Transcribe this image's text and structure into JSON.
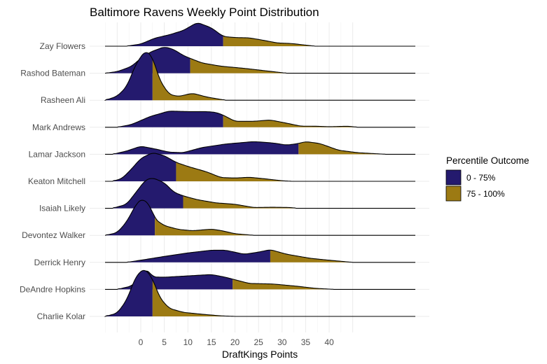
{
  "chart_data": {
    "type": "ridgeline-density",
    "title": "Baltimore Ravens Weekly Point Distribution",
    "xlabel": "DraftKings Points",
    "ylabel": "",
    "x_ticks": [
      0,
      5,
      10,
      15,
      20,
      25,
      30,
      35,
      40
    ],
    "x_tick_labels": [
      "0",
      "5",
      "10",
      "15",
      "20",
      "25",
      "30",
      "35",
      "40"
    ],
    "xlim": [
      -7.5,
      58.5
    ],
    "grid": true,
    "legend": {
      "title": "Percentile Outcome",
      "position": "right",
      "entries": [
        {
          "label": "0 - 75%",
          "color": "#241a6e"
        },
        {
          "label": "75 - 100%",
          "color": "#9c7a13"
        }
      ]
    },
    "density_unit": "fraction of row spacing",
    "series": [
      {
        "name": "Zay Flowers",
        "p75": 17.5,
        "curve": [
          [
            -3,
            0
          ],
          [
            0,
            0.08
          ],
          [
            3,
            0.3
          ],
          [
            6,
            0.42
          ],
          [
            9,
            0.58
          ],
          [
            12,
            0.88
          ],
          [
            15,
            0.68
          ],
          [
            17.5,
            0.36
          ],
          [
            20,
            0.32
          ],
          [
            23,
            0.31
          ],
          [
            26,
            0.22
          ],
          [
            29,
            0.12
          ],
          [
            32,
            0.1
          ],
          [
            35,
            0.04
          ],
          [
            37,
            0
          ]
        ]
      },
      {
        "name": "Rashod Bateman",
        "p75": 10.5,
        "curve": [
          [
            -7.5,
            0
          ],
          [
            -5,
            0.06
          ],
          [
            -2,
            0.25
          ],
          [
            0,
            0.55
          ],
          [
            2,
            0.78
          ],
          [
            5,
            0.98
          ],
          [
            7,
            0.88
          ],
          [
            9,
            0.66
          ],
          [
            10.5,
            0.55
          ],
          [
            13,
            0.38
          ],
          [
            17,
            0.26
          ],
          [
            22,
            0.18
          ],
          [
            26,
            0.1
          ],
          [
            30,
            0.02
          ],
          [
            31,
            0
          ]
        ]
      },
      {
        "name": "Rasheen Ali",
        "p75": 2.5,
        "curve": [
          [
            -7.5,
            0
          ],
          [
            -5,
            0.15
          ],
          [
            -3,
            0.5
          ],
          [
            -1,
            1.35
          ],
          [
            1,
            1.85
          ],
          [
            2.5,
            1.6
          ],
          [
            4,
            0.75
          ],
          [
            6,
            0.22
          ],
          [
            8,
            0.14
          ],
          [
            11,
            0.26
          ],
          [
            14,
            0.12
          ],
          [
            17,
            0.03
          ],
          [
            18,
            0
          ]
        ]
      },
      {
        "name": "Mark Andrews",
        "p75": 17.5,
        "curve": [
          [
            -5,
            0
          ],
          [
            -2,
            0.1
          ],
          [
            2,
            0.4
          ],
          [
            6,
            0.6
          ],
          [
            10,
            0.58
          ],
          [
            14,
            0.58
          ],
          [
            16,
            0.55
          ],
          [
            17.5,
            0.45
          ],
          [
            20,
            0.22
          ],
          [
            24,
            0.22
          ],
          [
            27.5,
            0.27
          ],
          [
            31,
            0.15
          ],
          [
            34,
            0.04
          ],
          [
            37,
            0.04
          ],
          [
            40,
            0.02
          ],
          [
            44,
            0.04
          ],
          [
            46,
            0
          ]
        ]
      },
      {
        "name": "Lamar Jackson",
        "p75": 33.5,
        "curve": [
          [
            -6,
            0
          ],
          [
            -3,
            0.12
          ],
          [
            0,
            0.3
          ],
          [
            3,
            0.2
          ],
          [
            6,
            0.08
          ],
          [
            9,
            0.06
          ],
          [
            13,
            0.25
          ],
          [
            18,
            0.38
          ],
          [
            24,
            0.47
          ],
          [
            28,
            0.42
          ],
          [
            31,
            0.34
          ],
          [
            33.5,
            0.4
          ],
          [
            35,
            0.47
          ],
          [
            38,
            0.4
          ],
          [
            42,
            0.15
          ],
          [
            46,
            0.06
          ],
          [
            52,
            0
          ]
        ]
      },
      {
        "name": "Keaton Mitchell",
        "p75": 7.5,
        "curve": [
          [
            -6,
            0
          ],
          [
            -4,
            0.1
          ],
          [
            -2,
            0.45
          ],
          [
            0,
            0.85
          ],
          [
            2.5,
            1.06
          ],
          [
            5,
            0.95
          ],
          [
            7.5,
            0.7
          ],
          [
            10,
            0.55
          ],
          [
            14,
            0.35
          ],
          [
            17,
            0.14
          ],
          [
            20,
            0.12
          ],
          [
            23,
            0.15
          ],
          [
            26,
            0.1
          ],
          [
            30,
            0.02
          ],
          [
            32,
            0
          ]
        ]
      },
      {
        "name": "Isaiah Likely",
        "p75": 9.0,
        "curve": [
          [
            -6,
            0
          ],
          [
            -3,
            0.15
          ],
          [
            -1,
            0.6
          ],
          [
            1,
            1.05
          ],
          [
            2.5,
            1.13
          ],
          [
            5,
            0.95
          ],
          [
            7,
            0.6
          ],
          [
            9,
            0.46
          ],
          [
            12,
            0.32
          ],
          [
            16,
            0.2
          ],
          [
            20,
            0.15
          ],
          [
            24,
            0.03
          ],
          [
            28,
            0.04
          ],
          [
            32,
            0.03
          ],
          [
            33,
            0
          ]
        ]
      },
      {
        "name": "Devontez Walker",
        "p75": 3.0,
        "curve": [
          [
            -7.5,
            0
          ],
          [
            -5,
            0.1
          ],
          [
            -3,
            0.5
          ],
          [
            -1,
            1.15
          ],
          [
            0.3,
            1.37
          ],
          [
            2,
            1.1
          ],
          [
            3,
            0.6
          ],
          [
            5,
            0.36
          ],
          [
            8,
            0.22
          ],
          [
            11,
            0.17
          ],
          [
            15,
            0.23
          ],
          [
            17,
            0.18
          ],
          [
            20,
            0.06
          ],
          [
            24,
            0
          ]
        ]
      },
      {
        "name": "Derrick Henry",
        "p75": 27.5,
        "curve": [
          [
            -3,
            0
          ],
          [
            0,
            0.08
          ],
          [
            5,
            0.22
          ],
          [
            10,
            0.35
          ],
          [
            15,
            0.45
          ],
          [
            18,
            0.45
          ],
          [
            22,
            0.3
          ],
          [
            25,
            0.38
          ],
          [
            27.5,
            0.47
          ],
          [
            31,
            0.3
          ],
          [
            36,
            0.15
          ],
          [
            40,
            0.08
          ],
          [
            45,
            0
          ]
        ]
      },
      {
        "name": "DeAndre Hopkins",
        "p75": 19.5,
        "curve": [
          [
            -5,
            0
          ],
          [
            -2,
            0.12
          ],
          [
            0,
            0.45
          ],
          [
            1,
            0.78
          ],
          [
            2,
            0.6
          ],
          [
            2.5,
            0.46
          ],
          [
            5,
            0.45
          ],
          [
            10,
            0.5
          ],
          [
            15,
            0.55
          ],
          [
            18,
            0.45
          ],
          [
            19.5,
            0.38
          ],
          [
            23,
            0.22
          ],
          [
            28,
            0.2
          ],
          [
            33,
            0.12
          ],
          [
            37,
            0.04
          ],
          [
            41,
            0
          ]
        ]
      },
      {
        "name": "Charlie Kolar",
        "p75": 2.5,
        "curve": [
          [
            -7.5,
            0
          ],
          [
            -5,
            0.12
          ],
          [
            -3,
            0.6
          ],
          [
            -1,
            1.5
          ],
          [
            0.8,
            1.78
          ],
          [
            2.5,
            1.4
          ],
          [
            4,
            0.7
          ],
          [
            6,
            0.3
          ],
          [
            9,
            0.15
          ],
          [
            13,
            0.08
          ],
          [
            17,
            0.02
          ],
          [
            20,
            0
          ]
        ]
      }
    ]
  }
}
